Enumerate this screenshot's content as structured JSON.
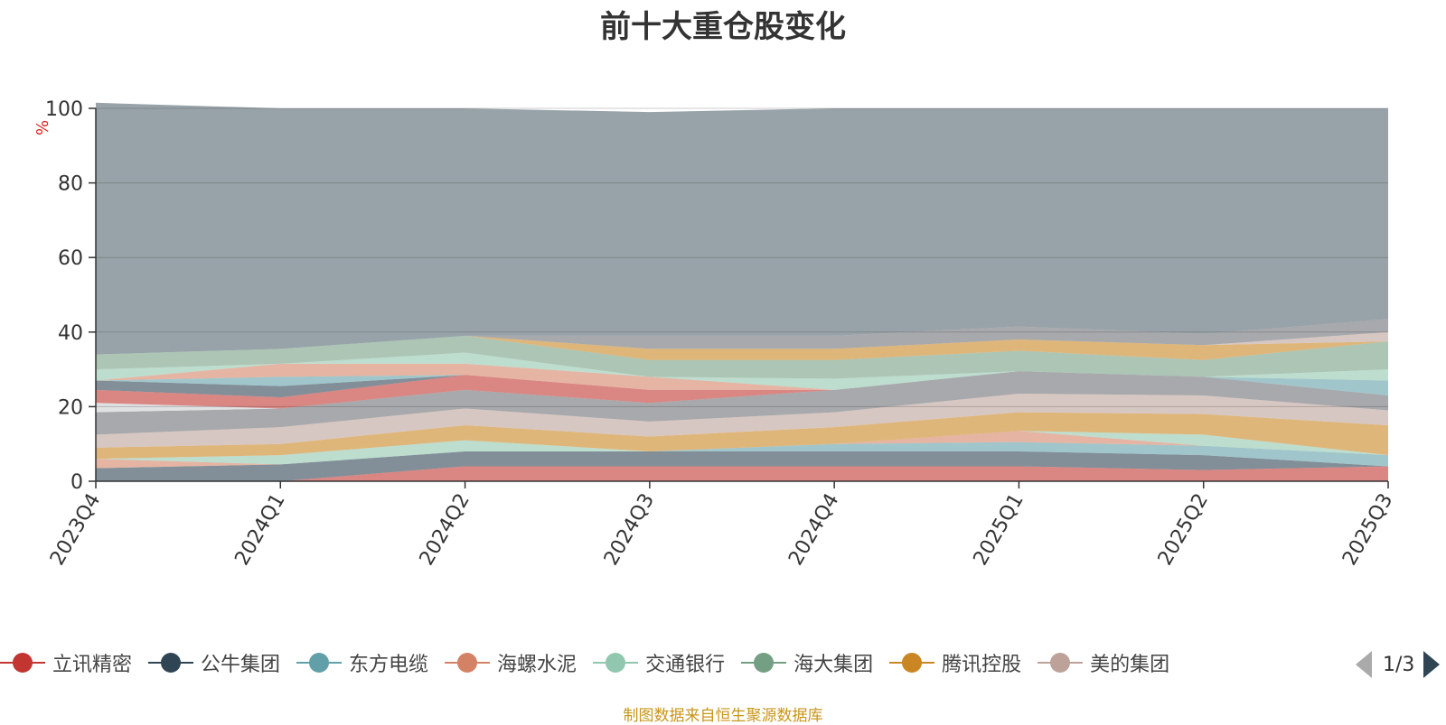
{
  "title": "前十大重仓股变化",
  "unit_label": "%",
  "source_note": "制图数据来自恒生聚源数据库",
  "pager": {
    "page": "1/3"
  },
  "chart_data": {
    "type": "area",
    "stacked": true,
    "categories": [
      "2023Q4",
      "2024Q1",
      "2024Q2",
      "2024Q3",
      "2024Q4",
      "2025Q1",
      "2025Q2",
      "2025Q3"
    ],
    "ylim": [
      0,
      100
    ],
    "yticks": [
      0,
      20,
      40,
      60,
      80,
      100
    ],
    "grid": true,
    "legend_position": "bottom",
    "series": [
      {
        "name": "立讯精密",
        "color": "#c23531",
        "values": [
          0,
          0,
          4,
          4,
          4,
          4,
          3,
          4
        ]
      },
      {
        "name": "公牛集团",
        "color": "#2f4554",
        "values": [
          3.5,
          4.5,
          4,
          4,
          4,
          4,
          4,
          0
        ]
      },
      {
        "name": "东方电缆",
        "color": "#61a0a8",
        "values": [
          0,
          0,
          0,
          0,
          2,
          2.5,
          2.5,
          3
        ]
      },
      {
        "name": "海螺水泥",
        "color": "#d48265",
        "values": [
          2.5,
          0,
          0,
          0,
          0,
          3,
          0,
          0
        ]
      },
      {
        "name": "交通银行",
        "color": "#91c7ae",
        "values": [
          0,
          2.5,
          3,
          0,
          0,
          0,
          3,
          0
        ]
      },
      {
        "name": "海大集团",
        "color": "#749f83",
        "values": [
          0,
          0,
          0,
          0,
          0,
          0,
          0,
          0
        ]
      },
      {
        "name": "腾讯控股",
        "color": "#ca8622",
        "values": [
          3,
          3,
          4,
          4,
          4.5,
          5,
          5.5,
          8
        ]
      },
      {
        "name": "美的集团",
        "color": "#bda29a",
        "values": [
          3.5,
          4.5,
          4.5,
          4,
          4,
          5,
          5,
          4
        ]
      },
      {
        "name": "",
        "color": "#6e7074",
        "values": [
          6,
          5,
          5,
          5,
          6,
          6,
          5,
          4
        ]
      },
      {
        "name": "",
        "color": "#c9cdd1",
        "values": [
          2.5,
          0,
          0,
          0,
          0,
          0,
          0,
          0
        ]
      },
      {
        "name": "",
        "color": "#c23531",
        "values": [
          3.5,
          3,
          4,
          3.5,
          0,
          0,
          0,
          0
        ]
      },
      {
        "name": "",
        "color": "#2f4554",
        "values": [
          2.5,
          3,
          0,
          0,
          0,
          0,
          0,
          0
        ]
      },
      {
        "name": "",
        "color": "#61a0a8",
        "values": [
          0,
          2.5,
          0,
          0,
          0,
          0,
          0,
          4
        ]
      },
      {
        "name": "",
        "color": "#d48265",
        "values": [
          0,
          3.5,
          3,
          3.5,
          0,
          0,
          0,
          0
        ]
      },
      {
        "name": "",
        "color": "#91c7ae",
        "values": [
          3,
          0,
          3,
          0,
          3,
          0,
          0,
          3
        ]
      },
      {
        "name": "",
        "color": "#749f83",
        "values": [
          4,
          4,
          4.5,
          4.5,
          5,
          5.5,
          4.5,
          7.5
        ]
      },
      {
        "name": "",
        "color": "#ca8622",
        "values": [
          0,
          0,
          0,
          3,
          3,
          3,
          4,
          0
        ]
      },
      {
        "name": "",
        "color": "#bda29a",
        "values": [
          0,
          0,
          0,
          0,
          0,
          0,
          0,
          2.5
        ]
      },
      {
        "name": "",
        "color": "#6e7074",
        "values": [
          0,
          0,
          0,
          3.5,
          3.5,
          3.5,
          3,
          3.5
        ]
      },
      {
        "name": "",
        "color": "#546570",
        "values": [
          67.5,
          64.5,
          61,
          60,
          61,
          58.5,
          60.5,
          56.5
        ]
      }
    ]
  }
}
